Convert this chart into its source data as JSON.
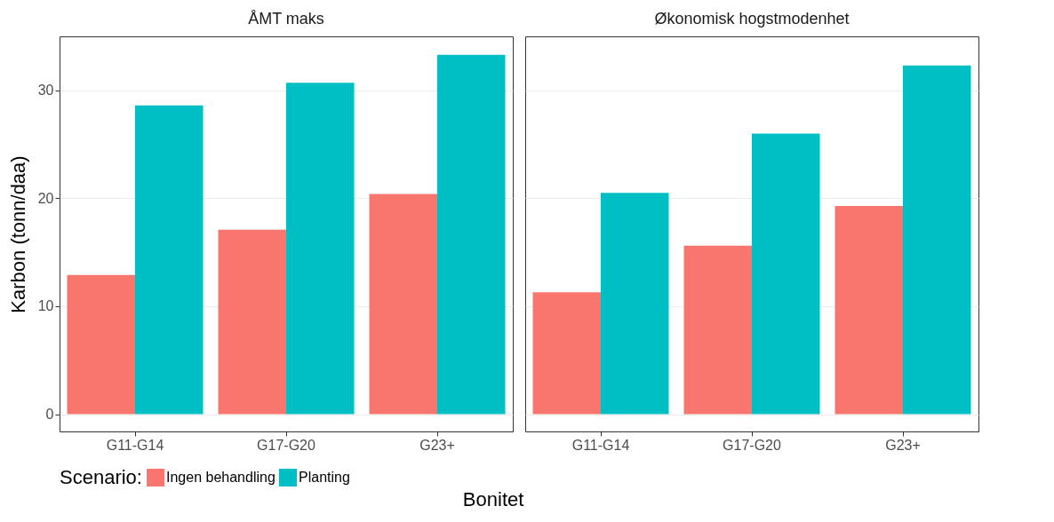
{
  "chart_data": [
    {
      "type": "bar",
      "title": "ÅMT maks",
      "xlabel": "Bonitet",
      "ylabel": "Karbon (tonn/daa)",
      "legend_title": "Scenario:",
      "legend": "bottom",
      "grid": "y",
      "categories": [
        "G11-G14",
        "G17-G20",
        "G23+"
      ],
      "ylim": [
        -1.6,
        35
      ],
      "yticks": [
        0,
        10,
        20,
        30
      ],
      "series": [
        {
          "name": "Ingen behandling",
          "color": "#f8766d",
          "values": [
            12.9,
            17.1,
            20.4
          ]
        },
        {
          "name": "Planting",
          "color": "#00bfc4",
          "values": [
            28.6,
            30.7,
            33.3
          ]
        }
      ]
    },
    {
      "type": "bar",
      "title": "Økonomisk hogstmodenhet",
      "grid": "y",
      "tick_labels": "x",
      "categories": [
        "G11-G14",
        "G17-G20",
        "G23+"
      ],
      "ylim": [
        -1.6,
        35
      ],
      "yticks": [
        0,
        10,
        20,
        30
      ],
      "series": [
        {
          "name": "Ingen behandling",
          "color": "#f8766d",
          "values": [
            11.3,
            15.6,
            19.3
          ]
        },
        {
          "name": "Planting",
          "color": "#00bfc4",
          "values": [
            20.5,
            26.0,
            32.3
          ]
        }
      ]
    }
  ]
}
